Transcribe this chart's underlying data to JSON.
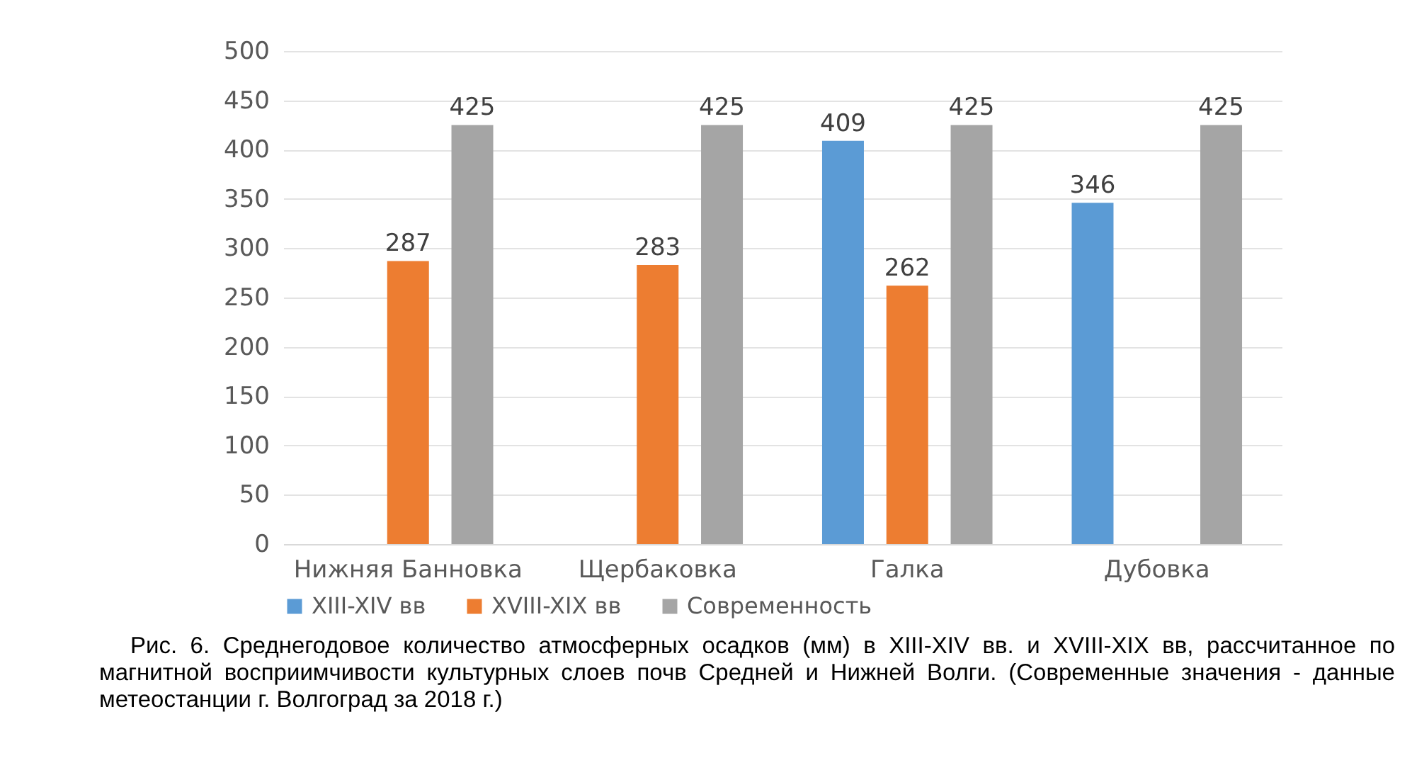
{
  "chart_data": {
    "type": "bar",
    "categories": [
      "Нижняя Банновка",
      "Щербаковка",
      "Галка",
      "Дубовка"
    ],
    "series": [
      {
        "name": "XIII-XIV вв",
        "color": "#5b9bd5",
        "values": [
          null,
          null,
          409,
          346
        ]
      },
      {
        "name": "XVIII-XIX вв",
        "color": "#ed7d31",
        "values": [
          287,
          283,
          262,
          null
        ]
      },
      {
        "name": "Современность",
        "color": "#a5a5a5",
        "values": [
          425,
          425,
          425,
          425
        ]
      }
    ],
    "ylim": [
      0,
      500
    ],
    "yticks": [
      0,
      50,
      100,
      150,
      200,
      250,
      300,
      350,
      400,
      450,
      500
    ],
    "grid": "y",
    "legend": "bottom",
    "data_labels": true,
    "annotations": [
      "Рис. 6. Среднегодовое количество атмосферных осадков (мм) в XIII-XIV вв. и XVIII-XIX вв, рассчитанное по магнитной восприимчивости культурных слоев почв Средней и Нижней Волги. (Современные значения - данные метеостанции г. Волгоград за 2018 г.)"
    ]
  }
}
